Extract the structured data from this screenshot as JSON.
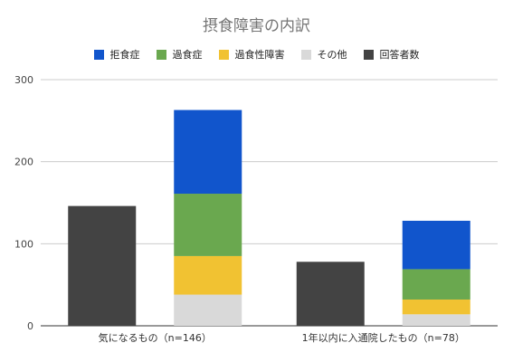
{
  "chart_data": {
    "type": "bar",
    "title": "摂食障害の内訳",
    "xlabel": "",
    "ylabel": "",
    "ylim": [
      0,
      300
    ],
    "yticks": [
      0,
      100,
      200,
      300
    ],
    "grid": true,
    "legend_position": "top",
    "categories": [
      "気になるもの（n=146）",
      "1年以内に入通院したもの（n=78）"
    ],
    "series": [
      {
        "name": "拒食症",
        "color": "#1155cc",
        "stack": "breakdown",
        "values": [
          102,
          59
        ]
      },
      {
        "name": "過食症",
        "color": "#6aa84f",
        "stack": "breakdown",
        "values": [
          76,
          37
        ]
      },
      {
        "name": "過食性障害",
        "color": "#f1c232",
        "stack": "breakdown",
        "values": [
          47,
          18
        ]
      },
      {
        "name": "その他",
        "color": "#d9d9d9",
        "stack": "breakdown",
        "values": [
          38,
          14
        ]
      },
      {
        "name": "回答者数",
        "color": "#434343",
        "stack": "respondents",
        "values": [
          146,
          78
        ]
      }
    ]
  }
}
